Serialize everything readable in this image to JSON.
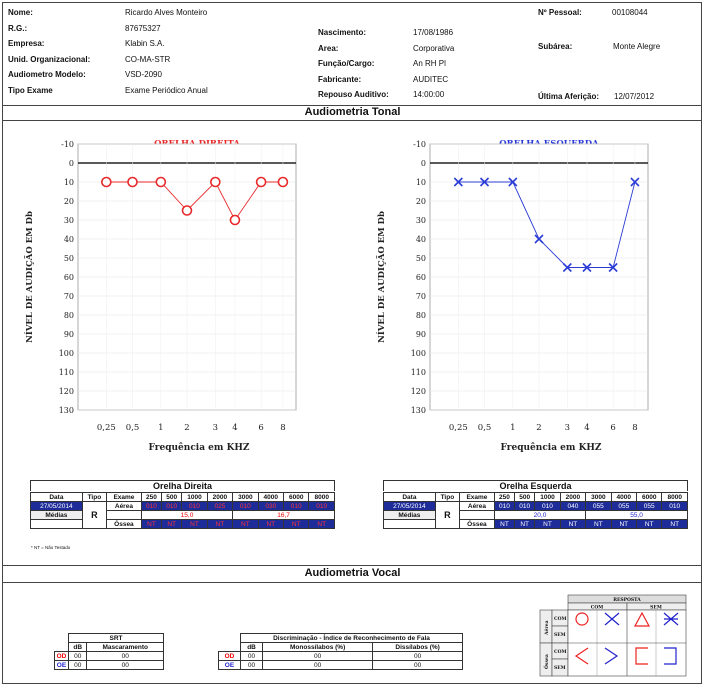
{
  "header": {
    "left": [
      {
        "label": "Nome:",
        "value": "Ricardo Alves Monteiro"
      },
      {
        "label": "R.G.:",
        "value": "87675327"
      },
      {
        "label": "Empresa:",
        "value": "Klabin S.A."
      },
      {
        "label": "Unid. Organizacional:",
        "value": "CO-MA-STR"
      },
      {
        "label": "Audiometro Modelo:",
        "value": "VSD-2090"
      },
      {
        "label": "Tipo Exame",
        "value": "Exame Periódico Anual"
      }
    ],
    "middle": [
      {
        "label": "Nascimento:",
        "value": "17/08/1986"
      },
      {
        "label": "Area:",
        "value": "Corporativa"
      },
      {
        "label": "Função/Cargo:",
        "value": "An RH Pl"
      },
      {
        "label": "Fabricante:",
        "value": "AUDITEC"
      },
      {
        "label": "Repouso Auditivo:",
        "value": "14:00:00"
      }
    ],
    "right": {
      "pessoal_label": "Nº Pessoal:",
      "pessoal_value": "00108044",
      "subarea_label": "Subárea:",
      "subarea_value": "Monte Alegre",
      "afericao_label": "Última Aferição:",
      "afericao_value": "12/07/2012"
    }
  },
  "section_tonal": "Audiometria Tonal",
  "section_vocal": "Audiometria Vocal",
  "chart_data": [
    {
      "type": "line",
      "title": "ORELHA DIREITA",
      "xlabel": "Frequência em KHZ",
      "ylabel": "NÍVEL DE AUDIÇÃO EM Db",
      "x": [
        "0,25",
        "0,5",
        "1",
        "2",
        "3",
        "4",
        "6",
        "8"
      ],
      "values": [
        10,
        10,
        10,
        25,
        10,
        30,
        10,
        10
      ],
      "marker": "O",
      "color": "#e8292b",
      "yticks": [
        -10,
        0,
        10,
        20,
        30,
        40,
        50,
        60,
        70,
        80,
        90,
        100,
        110,
        120,
        130
      ],
      "ylim": [
        -10,
        130
      ]
    },
    {
      "type": "line",
      "title": "ORELHA ESQUERDA",
      "xlabel": "Frequência em KHZ",
      "ylabel": "NÍVEL DE AUDIÇÃO EM Db",
      "x": [
        "0,25",
        "0,5",
        "1",
        "2",
        "3",
        "4",
        "6",
        "8"
      ],
      "values": [
        10,
        10,
        10,
        40,
        55,
        55,
        55,
        10
      ],
      "marker": "X",
      "color": "#2b3cd6",
      "yticks": [
        -10,
        0,
        10,
        20,
        30,
        40,
        50,
        60,
        70,
        80,
        90,
        100,
        110,
        120,
        130
      ],
      "ylim": [
        -10,
        130
      ]
    }
  ],
  "table_right": {
    "title": "Orelha Direita",
    "headers": [
      "Data",
      "Tipo",
      "Exame",
      "250",
      "500",
      "1000",
      "2000",
      "3000",
      "4000",
      "6000",
      "8000"
    ],
    "date": "27/05/2014",
    "tipo": "R",
    "aerea_label": "Aérea",
    "aerea": [
      "010",
      "010",
      "010",
      "025",
      "010",
      "030",
      "010",
      "010"
    ],
    "medias_label": "Médias",
    "media1": "15,0",
    "media2": "16,7",
    "ossea_label": "Óssea",
    "ossea": [
      "NT",
      "NT",
      "NT",
      "NT",
      "NT",
      "NT",
      "NT",
      "NT"
    ]
  },
  "table_left": {
    "title": "Orelha Esquerda",
    "headers": [
      "Data",
      "Tipo",
      "Exame",
      "250",
      "500",
      "1000",
      "2000",
      "3000",
      "4000",
      "6000",
      "8000"
    ],
    "date": "27/05/2014",
    "tipo": "R",
    "aerea_label": "Aérea",
    "aerea": [
      "010",
      "010",
      "010",
      "040",
      "055",
      "055",
      "055",
      "010"
    ],
    "medias_label": "Médias",
    "media1": "20,0",
    "media2": "55,0",
    "ossea_label": "Óssea",
    "ossea": [
      "NT",
      "NT",
      "NT",
      "NT",
      "NT",
      "NT",
      "NT",
      "NT"
    ]
  },
  "nt_note": "* NT = Não Testado",
  "srt": {
    "title": "SRT",
    "col_db": "dB",
    "col_masc": "Mascaramento",
    "rows": [
      {
        "ear": "OD",
        "db": "00",
        "masc": "00"
      },
      {
        "ear": "OE",
        "db": "00",
        "masc": "00"
      }
    ]
  },
  "discrim": {
    "title": "Discriminação - Índice de Reconhecimento de Fala",
    "col_db": "dB",
    "col_mono": "Monossílabos (%)",
    "col_dis": "Dissílabos (%)",
    "rows": [
      {
        "ear": "OD",
        "db": "00",
        "mono": "00",
        "dis": "00"
      },
      {
        "ear": "OE",
        "db": "00",
        "mono": "00",
        "dis": "00"
      }
    ]
  },
  "legend": {
    "title": "RESPOSTA",
    "com": "COM",
    "sem": "SEM",
    "row_aerea": "Aérea",
    "row_ossea": "Óssea",
    "row_com": "COM",
    "row_sem": "SEM"
  }
}
